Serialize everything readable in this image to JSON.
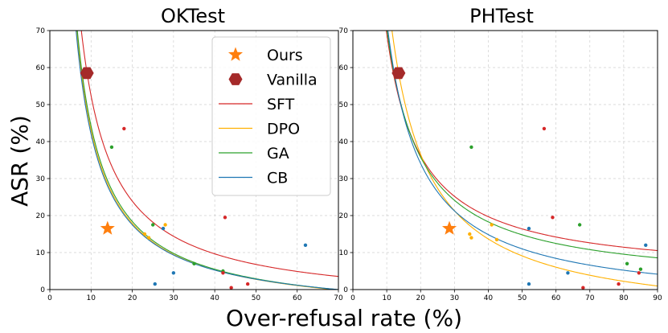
{
  "figure": {
    "xlabel": "Over-refusal rate (%)",
    "ylabel": "ASR (%)"
  },
  "legend": {
    "entries": [
      {
        "label": "Ours",
        "kind": "star",
        "color": "#ff7f0e"
      },
      {
        "label": "Vanilla",
        "kind": "hexagon",
        "color": "#a52a2a"
      },
      {
        "label": "SFT",
        "kind": "line",
        "color": "#d62728"
      },
      {
        "label": "DPO",
        "kind": "line",
        "color": "#ffb000"
      },
      {
        "label": "GA",
        "kind": "line",
        "color": "#2ca02c"
      },
      {
        "label": "CB",
        "kind": "line",
        "color": "#1f77b4"
      }
    ]
  },
  "chart_data": [
    {
      "type": "scatter",
      "title": "OKTest",
      "xlabel": "Over-refusal rate (%)",
      "ylabel": "ASR (%)",
      "xlim": [
        0,
        70
      ],
      "ylim": [
        0,
        70
      ],
      "xticks": [
        0,
        10,
        20,
        30,
        40,
        50,
        60,
        70
      ],
      "yticks": [
        0,
        10,
        20,
        30,
        40,
        50,
        60,
        70
      ],
      "grid": true,
      "vanilla": {
        "x": 9,
        "y": 58.5
      },
      "ours": {
        "x": 14,
        "y": 16.5
      },
      "curves": [
        {
          "name": "SFT",
          "color": "#d62728",
          "a": 570,
          "b": -4.6
        },
        {
          "name": "DPO",
          "color": "#ffb000",
          "a": 503,
          "b": -7.3
        },
        {
          "name": "GA",
          "color": "#2ca02c",
          "a": 516,
          "b": -7.4
        },
        {
          "name": "CB",
          "color": "#1f77b4",
          "a": 490,
          "b": -7.0
        }
      ],
      "points": [
        {
          "x": 18,
          "y": 43.5,
          "color": "#d62728"
        },
        {
          "x": 15,
          "y": 38.5,
          "color": "#2ca02c"
        },
        {
          "x": 42.5,
          "y": 19.5,
          "color": "#d62728"
        },
        {
          "x": 28,
          "y": 17.5,
          "color": "#ffb000"
        },
        {
          "x": 25,
          "y": 17.5,
          "color": "#2ca02c"
        },
        {
          "x": 27.5,
          "y": 16.5,
          "color": "#1f77b4"
        },
        {
          "x": 23,
          "y": 15,
          "color": "#ffb000"
        },
        {
          "x": 24,
          "y": 14,
          "color": "#ffb000"
        },
        {
          "x": 62,
          "y": 12,
          "color": "#1f77b4"
        },
        {
          "x": 35,
          "y": 7,
          "color": "#2ca02c"
        },
        {
          "x": 42,
          "y": 5,
          "color": "#2ca02c"
        },
        {
          "x": 42,
          "y": 4.5,
          "color": "#d62728"
        },
        {
          "x": 30,
          "y": 4.5,
          "color": "#1f77b4"
        },
        {
          "x": 25.5,
          "y": 1.5,
          "color": "#1f77b4"
        },
        {
          "x": 48,
          "y": 1.5,
          "color": "#d62728"
        },
        {
          "x": 44,
          "y": 0.5,
          "color": "#d62728"
        }
      ]
    },
    {
      "type": "scatter",
      "title": "PHTest",
      "xlabel": "Over-refusal rate (%)",
      "ylabel": "ASR (%)",
      "xlim": [
        0,
        90
      ],
      "ylim": [
        0,
        70
      ],
      "xticks": [
        0,
        10,
        20,
        30,
        40,
        50,
        60,
        70,
        80,
        90
      ],
      "yticks": [
        0,
        10,
        20,
        30,
        40,
        50,
        60,
        70
      ],
      "grid": true,
      "vanilla": {
        "x": 13.5,
        "y": 58.5
      },
      "ours": {
        "x": 28.5,
        "y": 16.5
      },
      "curves": [
        {
          "name": "SFT",
          "color": "#d62728",
          "a": 660,
          "b": 3.2
        },
        {
          "name": "DPO",
          "color": "#ffb000",
          "a": 915,
          "b": -9.2
        },
        {
          "name": "GA",
          "color": "#2ca02c",
          "a": 700,
          "b": 0.8
        },
        {
          "name": "CB",
          "color": "#1f77b4",
          "a": 770,
          "b": -4.4
        }
      ],
      "points": [
        {
          "x": 56.5,
          "y": 43.5,
          "color": "#d62728"
        },
        {
          "x": 35,
          "y": 38.5,
          "color": "#2ca02c"
        },
        {
          "x": 59,
          "y": 19.5,
          "color": "#d62728"
        },
        {
          "x": 41,
          "y": 17.5,
          "color": "#ffb000"
        },
        {
          "x": 67,
          "y": 17.5,
          "color": "#2ca02c"
        },
        {
          "x": 52,
          "y": 16.5,
          "color": "#1f77b4"
        },
        {
          "x": 34.5,
          "y": 15,
          "color": "#ffb000"
        },
        {
          "x": 35,
          "y": 14,
          "color": "#ffb000"
        },
        {
          "x": 42.5,
          "y": 13.5,
          "color": "#ffb000"
        },
        {
          "x": 86.5,
          "y": 12,
          "color": "#1f77b4"
        },
        {
          "x": 81,
          "y": 7,
          "color": "#2ca02c"
        },
        {
          "x": 85,
          "y": 5.5,
          "color": "#2ca02c"
        },
        {
          "x": 84.5,
          "y": 4.5,
          "color": "#d62728"
        },
        {
          "x": 63.5,
          "y": 4.5,
          "color": "#1f77b4"
        },
        {
          "x": 52,
          "y": 1.5,
          "color": "#1f77b4"
        },
        {
          "x": 78.5,
          "y": 1.5,
          "color": "#d62728"
        },
        {
          "x": 68,
          "y": 0.5,
          "color": "#d62728"
        }
      ]
    }
  ]
}
